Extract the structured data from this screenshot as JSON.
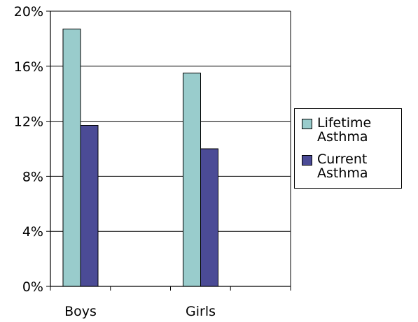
{
  "chart_data": {
    "type": "bar",
    "categories": [
      "Boys",
      "Girls"
    ],
    "series": [
      {
        "name": "Lifetime Asthma",
        "values": [
          18.7,
          15.5
        ],
        "color": "#99CCCC"
      },
      {
        "name": "Current Asthma",
        "values": [
          11.7,
          10.0
        ],
        "color": "#4B4B96"
      }
    ],
    "title": "",
    "xlabel": "",
    "ylabel": "",
    "ylim": [
      0,
      20
    ],
    "yticks": [
      "0%",
      "4%",
      "8%",
      "12%",
      "16%",
      "20%"
    ],
    "grid": true,
    "legend": "right"
  }
}
